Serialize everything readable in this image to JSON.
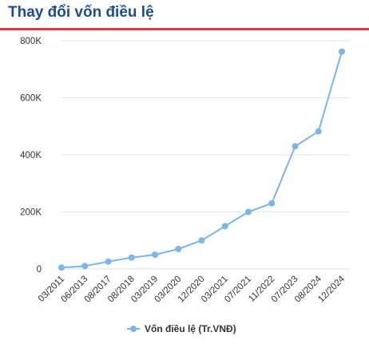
{
  "header": {
    "title": "Thay đổi vốn điều lệ"
  },
  "colors": {
    "title": "#1e4d91",
    "rule": "#e03a3a",
    "series": "#7cb5ec",
    "grid": "#e6e6e6",
    "axis_text": "#333333"
  },
  "chart_data": {
    "type": "line",
    "title": "Thay đổi vốn điều lệ",
    "xlabel": "",
    "ylabel": "",
    "categories": [
      "03/2011",
      "06/2013",
      "08/2017",
      "08/2018",
      "03/2019",
      "03/2020",
      "12/2020",
      "03/2021",
      "07/2021",
      "11/2022",
      "07/2023",
      "08/2024",
      "12/2024"
    ],
    "y_ticks": [
      0,
      200000,
      400000,
      600000,
      800000
    ],
    "y_tick_labels": [
      "0",
      "200K",
      "400K",
      "600K",
      "800K"
    ],
    "ylim": [
      0,
      800000
    ],
    "grid": true,
    "legend_position": "bottom-center",
    "series": [
      {
        "name": "Vốn điều lệ (Tr.VNĐ)",
        "values": [
          5000,
          10000,
          26000,
          40000,
          50000,
          70000,
          100000,
          150000,
          200000,
          230000,
          430000,
          482000,
          762000
        ]
      }
    ]
  }
}
